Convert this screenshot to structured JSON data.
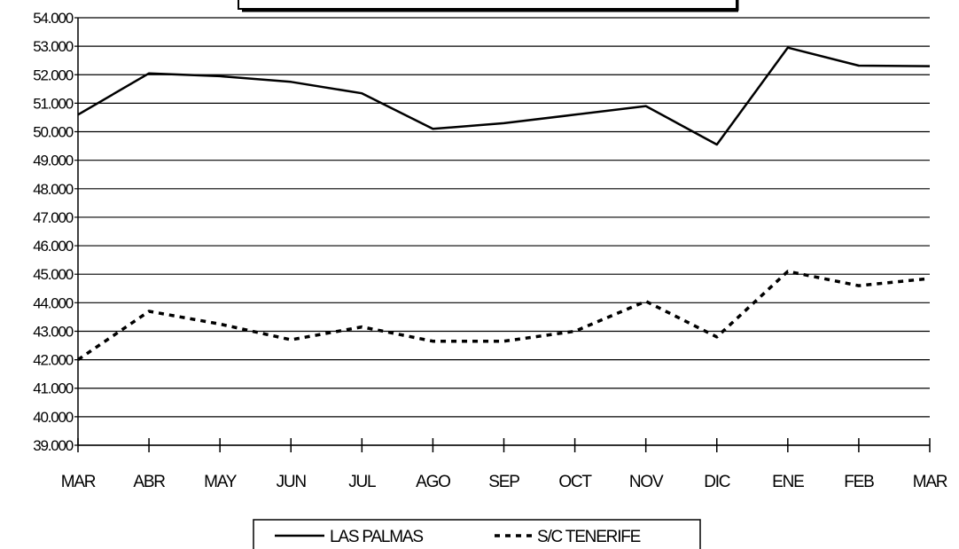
{
  "chart_data": {
    "type": "line",
    "title": "",
    "xlabel": "",
    "ylabel": "",
    "categories": [
      "MAR",
      "ABR",
      "MAY",
      "JUN",
      "JUL",
      "AGO",
      "SEP",
      "OCT",
      "NOV",
      "DIC",
      "ENE",
      "FEB",
      "MAR"
    ],
    "ylim": [
      39000,
      54000
    ],
    "ytick_step": 1000,
    "ytick_labels": [
      "39.000",
      "40.000",
      "41.000",
      "42.000",
      "43.000",
      "44.000",
      "45.000",
      "46.000",
      "47.000",
      "48.000",
      "49.000",
      "50.000",
      "51.000",
      "52.000",
      "53.000",
      "54.000"
    ],
    "grid": true,
    "legend_position": "bottom",
    "series": [
      {
        "name": "LAS PALMAS",
        "line_style": "solid",
        "color": "#000000",
        "values": [
          50600,
          52050,
          51950,
          51750,
          51350,
          50100,
          50300,
          50600,
          50900,
          49550,
          52950,
          52320,
          52300
        ]
      },
      {
        "name": "S/C TENERIFE",
        "line_style": "dotted",
        "color": "#000000",
        "values": [
          42000,
          43700,
          43250,
          42700,
          43150,
          42650,
          42650,
          43000,
          44050,
          42800,
          45100,
          44600,
          44850
        ]
      }
    ]
  }
}
